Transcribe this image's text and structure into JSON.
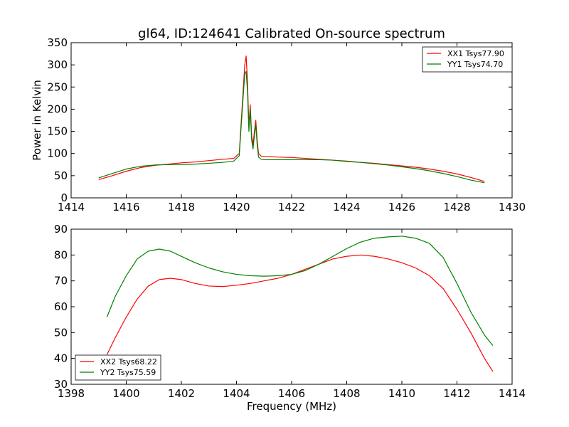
{
  "chart_data": [
    {
      "type": "line",
      "title": "gl64, ID:124641 Calibrated On-source spectrum",
      "xlabel": "",
      "ylabel": "Power in Kelvin",
      "xlim": [
        1414,
        1430
      ],
      "ylim": [
        0,
        350
      ],
      "xticks": [
        "1414",
        "1416",
        "1418",
        "1420",
        "1422",
        "1424",
        "1426",
        "1428",
        "1430"
      ],
      "yticks": [
        "0",
        "50",
        "100",
        "150",
        "200",
        "250",
        "300",
        "350"
      ],
      "grid": false,
      "legend_position": "top-right",
      "series": [
        {
          "name": "XX1 Tsys77.90",
          "color": "#ff0000",
          "x": [
            1415,
            1415.5,
            1416,
            1416.5,
            1417,
            1417.5,
            1418,
            1418.5,
            1419,
            1419.5,
            1419.9,
            1420.1,
            1420.2,
            1420.3,
            1420.35,
            1420.4,
            1420.45,
            1420.5,
            1420.55,
            1420.6,
            1420.65,
            1420.7,
            1420.75,
            1420.8,
            1420.9,
            1421.0,
            1421.2,
            1421.5,
            1422,
            1422.5,
            1423,
            1423.5,
            1424,
            1424.5,
            1425,
            1425.5,
            1426,
            1426.5,
            1427,
            1427.5,
            1428,
            1428.5,
            1429
          ],
          "y": [
            41,
            50,
            60,
            68,
            73,
            76,
            79,
            81,
            84,
            87,
            89,
            100,
            200,
            300,
            320,
            260,
            160,
            210,
            140,
            120,
            150,
            175,
            130,
            100,
            94,
            93,
            93,
            92,
            91,
            89,
            87,
            85,
            82,
            80,
            78,
            75,
            72,
            69,
            65,
            60,
            54,
            46,
            37
          ]
        },
        {
          "name": "YY1 Tsys74.70",
          "color": "#008000",
          "x": [
            1415,
            1415.5,
            1416,
            1416.5,
            1417,
            1417.5,
            1418,
            1418.5,
            1419,
            1419.5,
            1419.9,
            1420.1,
            1420.2,
            1420.3,
            1420.35,
            1420.4,
            1420.45,
            1420.5,
            1420.55,
            1420.6,
            1420.65,
            1420.7,
            1420.75,
            1420.8,
            1420.9,
            1421.0,
            1421.2,
            1421.5,
            1422,
            1422.5,
            1423,
            1423.5,
            1424,
            1424.5,
            1425,
            1425.5,
            1426,
            1426.5,
            1427,
            1427.5,
            1428,
            1428.5,
            1429
          ],
          "y": [
            45,
            55,
            65,
            71,
            74,
            75,
            75,
            76,
            78,
            80,
            83,
            95,
            190,
            280,
            285,
            240,
            150,
            200,
            130,
            110,
            140,
            165,
            120,
            92,
            87,
            86,
            86,
            86,
            86,
            86,
            86,
            85,
            83,
            80,
            77,
            74,
            70,
            66,
            61,
            55,
            48,
            40,
            34
          ]
        }
      ]
    },
    {
      "type": "line",
      "title": "",
      "xlabel": "Frequency (MHz)",
      "ylabel": "",
      "xlim": [
        1398,
        1414
      ],
      "ylim": [
        30,
        90
      ],
      "xticks": [
        "1398",
        "1400",
        "1402",
        "1404",
        "1406",
        "1408",
        "1410",
        "1412",
        "1414"
      ],
      "yticks": [
        "30",
        "40",
        "50",
        "60",
        "70",
        "80",
        "90"
      ],
      "grid": false,
      "legend_position": "bottom-left",
      "series": [
        {
          "name": "XX2 Tsys68.22",
          "color": "#ff0000",
          "x": [
            1399.3,
            1399.6,
            1400,
            1400.4,
            1400.8,
            1401.2,
            1401.6,
            1402,
            1402.5,
            1403,
            1403.5,
            1404,
            1404.5,
            1405,
            1405.5,
            1406,
            1406.5,
            1407,
            1407.5,
            1408,
            1408.5,
            1409,
            1409.5,
            1410,
            1410.5,
            1411,
            1411.5,
            1412,
            1412.5,
            1413,
            1413.3
          ],
          "y": [
            41.5,
            48,
            56,
            63,
            68,
            70.5,
            71,
            70.5,
            69,
            68,
            67.8,
            68.3,
            69,
            70,
            71,
            72.5,
            74.5,
            76.5,
            78.5,
            79.5,
            80,
            79.5,
            78.5,
            77,
            75,
            72,
            67,
            59,
            50,
            40,
            35
          ]
        },
        {
          "name": "YY2 Tsys75.59",
          "color": "#008000",
          "x": [
            1399.3,
            1399.6,
            1400,
            1400.4,
            1400.8,
            1401.2,
            1401.6,
            1402,
            1402.5,
            1403,
            1403.5,
            1404,
            1404.5,
            1405,
            1405.5,
            1406,
            1406.5,
            1407,
            1407.5,
            1408,
            1408.5,
            1409,
            1409.5,
            1410,
            1410.5,
            1411,
            1411.5,
            1412,
            1412.5,
            1413,
            1413.3
          ],
          "y": [
            56,
            64,
            72,
            78.5,
            81.5,
            82.3,
            81.5,
            79.5,
            77,
            75,
            73.5,
            72.5,
            72,
            71.8,
            72,
            72.5,
            74,
            76.5,
            79.5,
            82.5,
            85,
            86.5,
            87,
            87.3,
            86.5,
            84.5,
            79,
            69,
            58,
            49,
            45
          ]
        }
      ]
    }
  ]
}
